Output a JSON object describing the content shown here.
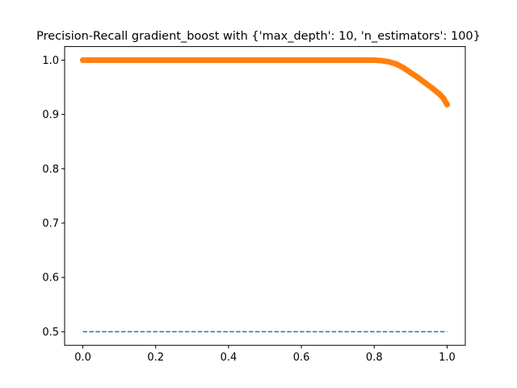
{
  "chart_data": {
    "type": "line",
    "title": "Precision-Recall gradient_boost with {'max_depth': 10, 'n_estimators': 100}",
    "xlabel": "",
    "ylabel": "",
    "xlim": [
      -0.05,
      1.05
    ],
    "ylim": [
      0.475,
      1.025
    ],
    "x_ticks": [
      0.0,
      0.2,
      0.4,
      0.6,
      0.8,
      1.0
    ],
    "x_tick_labels": [
      "0.0",
      "0.2",
      "0.4",
      "0.6",
      "0.8",
      "1.0"
    ],
    "y_ticks": [
      0.5,
      0.6,
      0.7,
      0.8,
      0.9,
      1.0
    ],
    "y_tick_labels": [
      "0.5",
      "0.6",
      "0.7",
      "0.8",
      "0.9",
      "1.0"
    ],
    "grid": false,
    "legend": "none",
    "series": [
      {
        "color": "#1f77b4",
        "style": "dashed",
        "x": [
          0.0,
          1.0
        ],
        "y": [
          0.5,
          0.5
        ]
      },
      {
        "color": "#ff7f0e",
        "style": "solid-markers",
        "x": [
          0.0,
          0.1,
          0.2,
          0.3,
          0.4,
          0.5,
          0.6,
          0.7,
          0.78,
          0.8,
          0.82,
          0.84,
          0.86,
          0.88,
          0.9,
          0.92,
          0.94,
          0.96,
          0.98,
          0.99,
          1.0
        ],
        "y": [
          1.0,
          1.0,
          1.0,
          1.0,
          1.0,
          1.0,
          1.0,
          1.0,
          1.0,
          1.0,
          0.999,
          0.997,
          0.993,
          0.986,
          0.977,
          0.968,
          0.958,
          0.948,
          0.937,
          0.93,
          0.918
        ]
      }
    ]
  }
}
